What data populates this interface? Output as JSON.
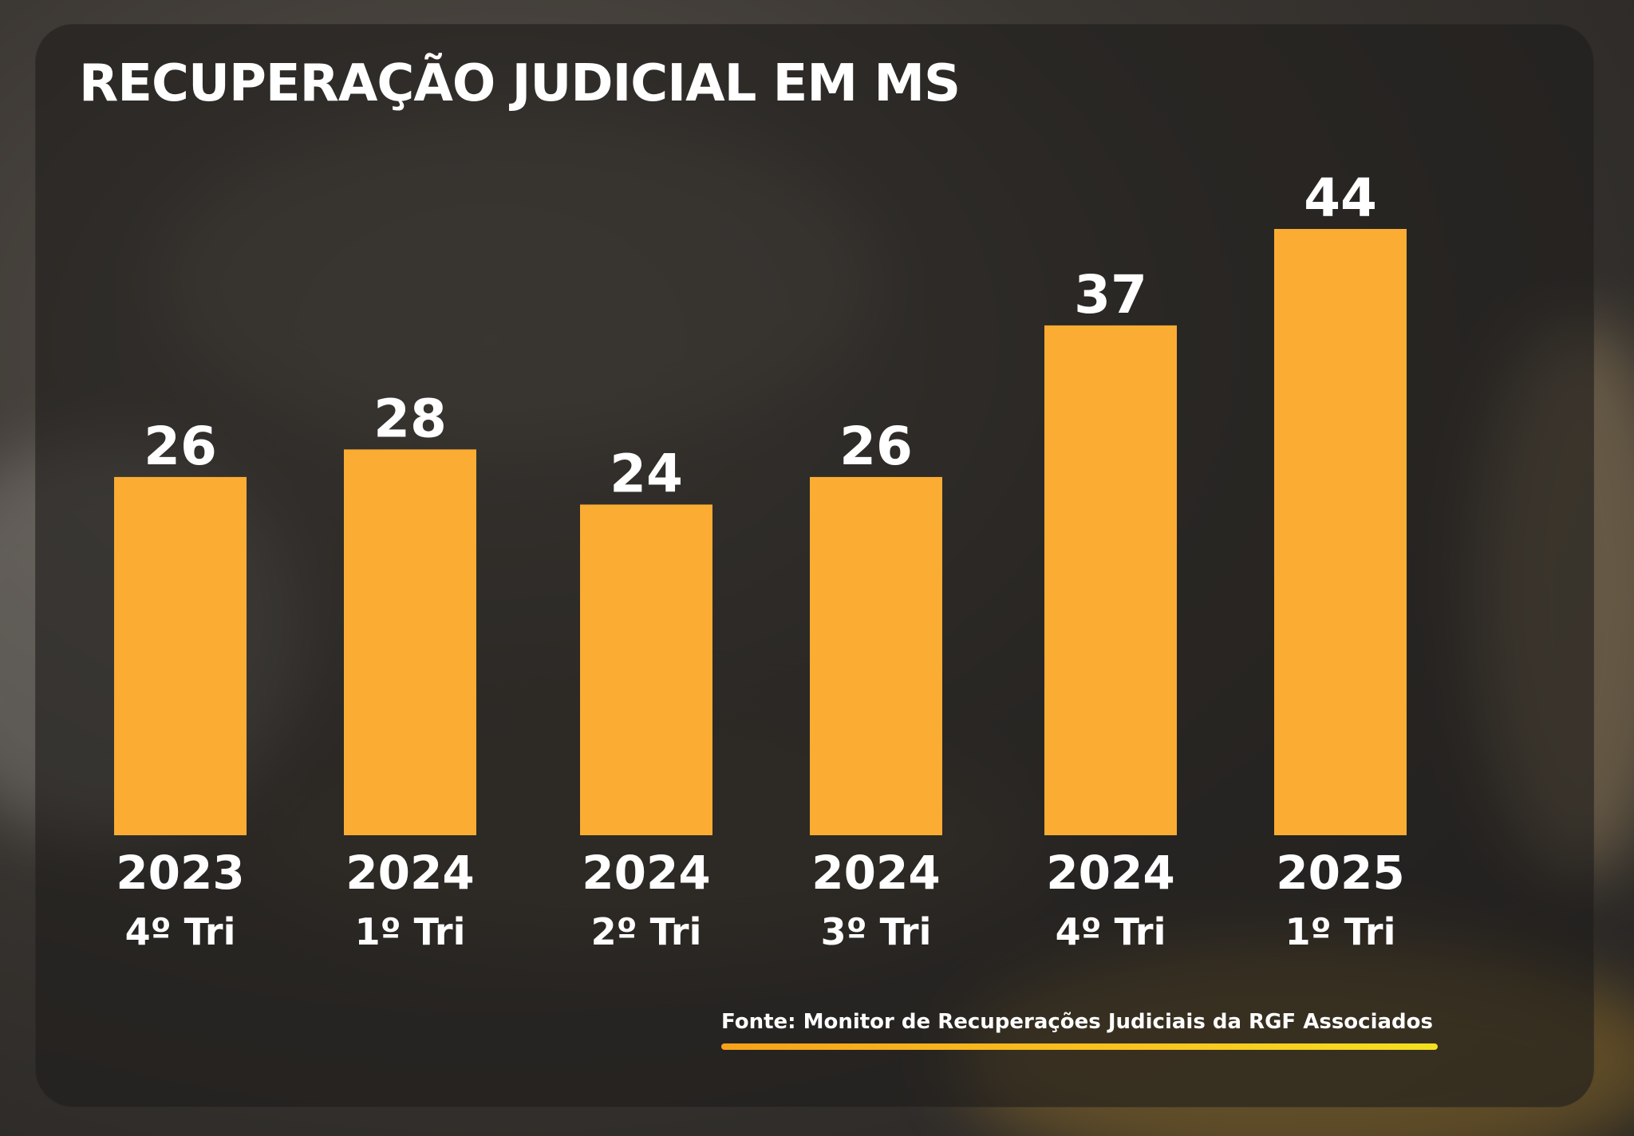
{
  "title": "RECUPERAÇÃO JUDICIAL EM MS",
  "source": "Fonte: Monitor de Recuperações Judiciais da RGF Associados",
  "colors": {
    "bar": "#fbac33",
    "text": "#ffffff",
    "underline_start": "#f7a21a",
    "underline_end": "#f4e01f"
  },
  "chart_data": {
    "type": "bar",
    "title": "RECUPERAÇÃO JUDICIAL EM MS",
    "categories": [
      {
        "year": "2023",
        "quarter": "4º Tri"
      },
      {
        "year": "2024",
        "quarter": "1º Tri"
      },
      {
        "year": "2024",
        "quarter": "2º Tri"
      },
      {
        "year": "2024",
        "quarter": "3º Tri"
      },
      {
        "year": "2024",
        "quarter": "4º Tri"
      },
      {
        "year": "2025",
        "quarter": "1º Tri"
      }
    ],
    "values": [
      26,
      28,
      24,
      26,
      37,
      44
    ],
    "xlabel": "",
    "ylabel": "",
    "ylim": [
      0,
      44
    ],
    "grid": false,
    "legend": false
  }
}
